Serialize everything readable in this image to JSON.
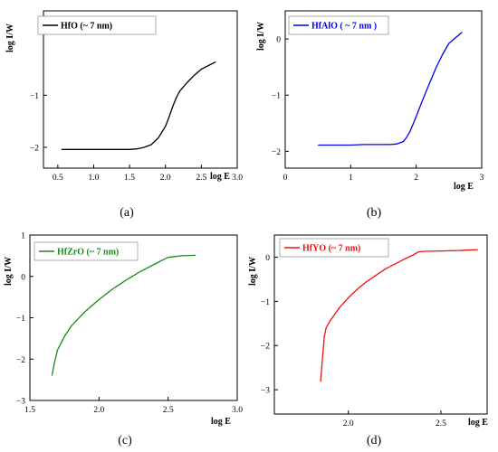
{
  "chart_data": [
    {
      "type": "line",
      "panel": "(a)",
      "legend": "HfO (~ 7 nm)",
      "color": "#000000",
      "xlabel": "log E",
      "ylabel": "log I/W",
      "xlim": [
        0.3,
        3.0
      ],
      "ylim": [
        -2.4,
        0.62
      ],
      "xticks": [
        "0.5",
        "1.0",
        "1.5",
        "2.0",
        "2.5",
        "3.0"
      ],
      "yticks": [
        "-2",
        "-1"
      ],
      "series": [
        {
          "x": [
            0.55,
            0.8,
            1.0,
            1.2,
            1.4,
            1.5,
            1.6,
            1.7,
            1.8,
            1.9,
            2.0,
            2.05,
            2.1,
            2.15,
            2.2,
            2.3,
            2.4,
            2.5,
            2.6,
            2.7
          ],
          "y": [
            -2.04,
            -2.04,
            -2.04,
            -2.04,
            -2.04,
            -2.04,
            -2.03,
            -2.0,
            -1.95,
            -1.82,
            -1.6,
            -1.42,
            -1.22,
            -1.05,
            -0.92,
            -0.76,
            -0.62,
            -0.5,
            -0.43,
            -0.36
          ]
        }
      ]
    },
    {
      "type": "line",
      "panel": "(b)",
      "legend": "HfAlO ( ~ 7 nm )",
      "color": "#0000ee",
      "xlabel": "log E",
      "ylabel": "log I/W",
      "xlim": [
        0,
        3
      ],
      "ylim": [
        -2.3,
        0.5
      ],
      "xticks": [
        "0",
        "1",
        "2",
        "3"
      ],
      "yticks": [
        "0",
        "-1",
        "-2"
      ],
      "series": [
        {
          "x": [
            0.5,
            0.8,
            1.0,
            1.2,
            1.4,
            1.6,
            1.7,
            1.8,
            1.85,
            1.9,
            1.95,
            2.0,
            2.1,
            2.2,
            2.3,
            2.4,
            2.5,
            2.6,
            2.7
          ],
          "y": [
            -1.89,
            -1.89,
            -1.89,
            -1.88,
            -1.88,
            -1.88,
            -1.87,
            -1.83,
            -1.76,
            -1.66,
            -1.52,
            -1.38,
            -1.08,
            -0.8,
            -0.52,
            -0.28,
            -0.08,
            0.02,
            0.12
          ]
        }
      ]
    },
    {
      "type": "line",
      "panel": "(c)",
      "legend": "HfZrO (~ 7 nm)",
      "color": "#1a8a1a",
      "xlabel": "log E",
      "ylabel": "log I/W",
      "xlim": [
        1.5,
        3.0
      ],
      "ylim": [
        -3,
        1
      ],
      "xticks": [
        "1.5",
        "2.0",
        "2.5",
        "3.0"
      ],
      "yticks": [
        "1",
        "0",
        "-1",
        "-2",
        "-3"
      ],
      "series": [
        {
          "x": [
            1.66,
            1.68,
            1.7,
            1.75,
            1.8,
            1.9,
            2.0,
            2.1,
            2.2,
            2.3,
            2.4,
            2.45,
            2.5,
            2.55,
            2.6,
            2.7
          ],
          "y": [
            -2.4,
            -2.05,
            -1.78,
            -1.45,
            -1.2,
            -0.85,
            -0.56,
            -0.3,
            -0.08,
            0.12,
            0.29,
            0.38,
            0.46,
            0.48,
            0.5,
            0.51
          ]
        }
      ]
    },
    {
      "type": "line",
      "panel": "(d)",
      "legend": "HfYO (~ 7 nm)",
      "color": "#ee1111",
      "xlabel": "log E",
      "ylabel": "log I/W",
      "xlim": [
        1.6,
        2.75
      ],
      "ylim": [
        -3.55,
        0.5
      ],
      "xticks": [
        "2.0",
        "2.5"
      ],
      "yticks": [
        "0",
        "-1",
        "-2",
        "-3"
      ],
      "series": [
        {
          "x": [
            1.85,
            1.86,
            1.87,
            1.88,
            1.9,
            1.95,
            2.0,
            2.05,
            2.1,
            2.2,
            2.3,
            2.35,
            2.38,
            2.4,
            2.5,
            2.6,
            2.7
          ],
          "y": [
            -2.82,
            -2.3,
            -1.8,
            -1.6,
            -1.45,
            -1.15,
            -0.92,
            -0.72,
            -0.55,
            -0.27,
            -0.05,
            0.05,
            0.12,
            0.13,
            0.14,
            0.15,
            0.17
          ]
        }
      ]
    }
  ]
}
